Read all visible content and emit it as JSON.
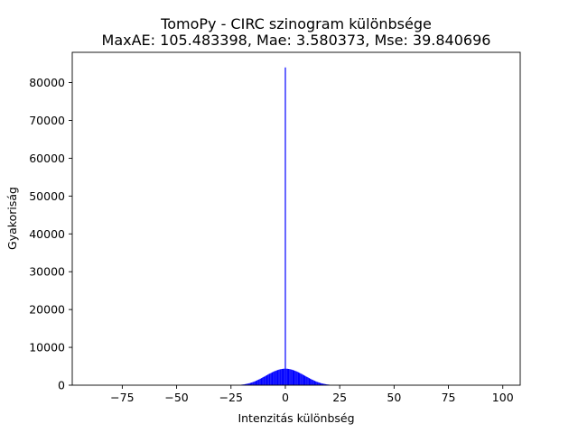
{
  "chart_data": {
    "type": "bar",
    "title": "TomoPy - CIRC szinogram különbsége",
    "subtitle": "MaxAE: 105.483398, Mae: 3.580373, Mse: 39.840696",
    "xlabel": "Intenzitás különbség",
    "ylabel": "Gyakoriság",
    "xlim": [
      -98,
      108
    ],
    "ylim": [
      0,
      88000
    ],
    "x_ticks": [
      -75,
      -50,
      -25,
      0,
      25,
      50,
      75,
      100
    ],
    "x_tick_labels": [
      "−75",
      "−50",
      "−25",
      "0",
      "25",
      "50",
      "75",
      "100"
    ],
    "y_ticks": [
      0,
      10000,
      20000,
      30000,
      40000,
      50000,
      60000,
      70000,
      80000
    ],
    "y_tick_labels": [
      "0",
      "10000",
      "20000",
      "30000",
      "40000",
      "50000",
      "60000",
      "70000",
      "80000"
    ],
    "grid": false,
    "bar_color": "#0000ff",
    "bin_width": 0.5,
    "series": [
      {
        "x": [
          -20,
          -19.5,
          -19,
          -18.5,
          -18,
          -17.5,
          -17,
          -16.5,
          -16,
          -15.5,
          -15,
          -14.5,
          -14,
          -13.5,
          -13,
          -12.5,
          -12,
          -11.5,
          -11,
          -10.5,
          -10,
          -9.5,
          -9,
          -8.5,
          -8,
          -7.5,
          -7,
          -6.5,
          -6,
          -5.5,
          -5,
          -4.5,
          -4,
          -3.5,
          -3,
          -2.5,
          -2,
          -1.5,
          -1,
          -0.5,
          0,
          0.5,
          1,
          1.5,
          2,
          2.5,
          3,
          3.5,
          4,
          4.5,
          5,
          5.5,
          6,
          6.5,
          7,
          7.5,
          8,
          8.5,
          9,
          9.5,
          10,
          10.5,
          11,
          11.5,
          12,
          12.5,
          13,
          13.5,
          14,
          14.5,
          15,
          15.5,
          16,
          16.5,
          17,
          17.5,
          18,
          18.5,
          19,
          19.5,
          20
        ],
        "values": [
          150,
          185,
          225,
          270,
          325,
          385,
          450,
          525,
          610,
          700,
          800,
          910,
          1025,
          1150,
          1280,
          1420,
          1560,
          1710,
          1860,
          2010,
          2170,
          2330,
          2490,
          2650,
          2810,
          2970,
          3120,
          3270,
          3410,
          3550,
          3680,
          3800,
          3910,
          4010,
          4100,
          4180,
          4250,
          4300,
          4340,
          4360,
          84000,
          4360,
          4340,
          4300,
          4250,
          4180,
          4100,
          4010,
          3910,
          3800,
          3680,
          3550,
          3410,
          3270,
          3120,
          2970,
          2810,
          2650,
          2490,
          2330,
          2170,
          2010,
          1860,
          1710,
          1560,
          1420,
          1280,
          1150,
          1025,
          910,
          800,
          700,
          610,
          525,
          450,
          385,
          325,
          270,
          225,
          185,
          150
        ]
      }
    ]
  }
}
